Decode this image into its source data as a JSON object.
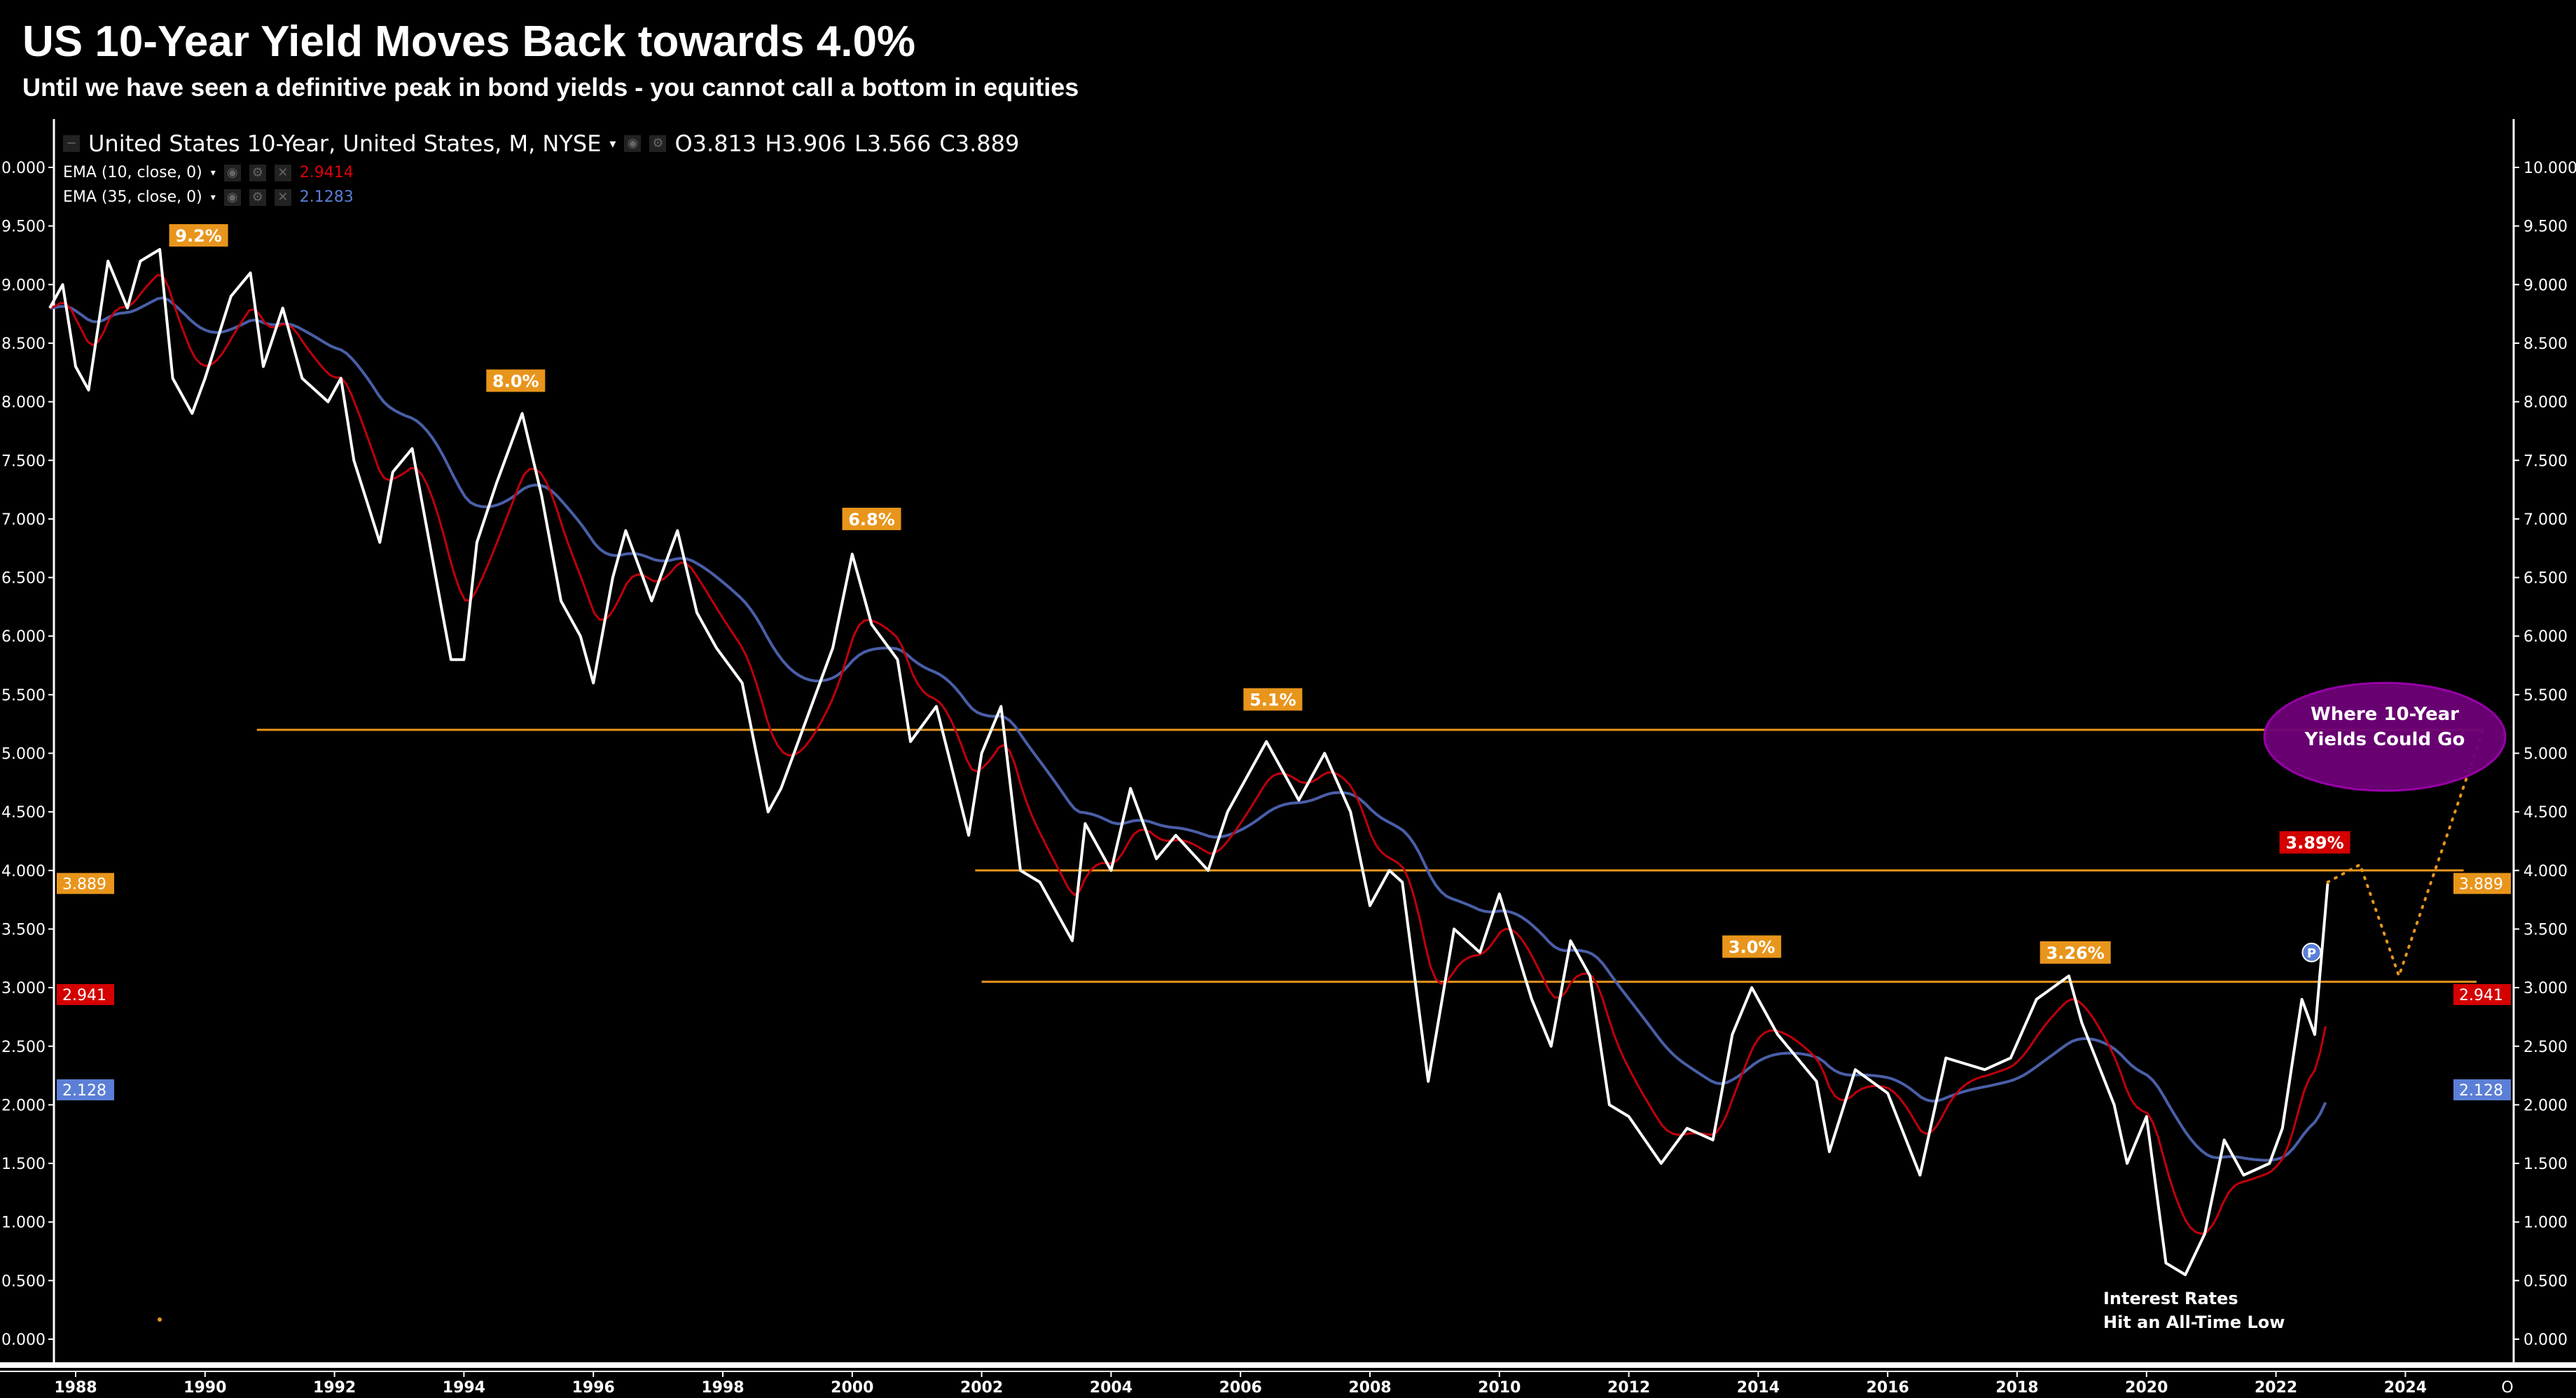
{
  "title": "US 10-Year Yield Moves Back towards 4.0%",
  "subtitle": "Until we have seen a definitive peak in bond yields - you cannot call a bottom in equities",
  "legend": {
    "symbol": "United States 10-Year, United States, M, NYSE",
    "open": "O3.813",
    "high": "H3.906",
    "low": "L3.566",
    "close": "C3.889",
    "ema10_label": "EMA (10, close, 0)",
    "ema10_value": "2.9414",
    "ema35_label": "EMA (35, close, 0)",
    "ema35_value": "2.1283"
  },
  "colors": {
    "close": "#ffffff",
    "ema10": "#c0000b",
    "ema35": "#4a5fa8",
    "level": "#e8951c",
    "badge": "#e8951c",
    "current_badge": "#d40000",
    "bubble": "#6e0078"
  },
  "chart_data": {
    "type": "line",
    "xlim": [
      1987.4,
      2025.6
    ],
    "ylim": [
      -0.2,
      10.2
    ],
    "x_ticks": [
      "1988",
      "1990",
      "1992",
      "1994",
      "1996",
      "1998",
      "2000",
      "2002",
      "2004",
      "2006",
      "2008",
      "2010",
      "2012",
      "2014",
      "2016",
      "2018",
      "2020",
      "2022",
      "2024"
    ],
    "y_ticks": [
      "0.000",
      "0.500",
      "1.000",
      "1.500",
      "2.000",
      "2.500",
      "3.000",
      "3.500",
      "4.000",
      "4.500",
      "5.000",
      "5.500",
      "6.000",
      "6.500",
      "7.000",
      "7.500",
      "8.000",
      "8.500",
      "9.000",
      "9.500",
      "10.000"
    ],
    "grid": false,
    "series": [
      {
        "name": "United States 10-Year",
        "ema_periods": 0,
        "x": [
          1987.6,
          1987.8,
          1988.0,
          1988.2,
          1988.5,
          1988.8,
          1989.0,
          1989.3,
          1989.5,
          1989.8,
          1990.0,
          1990.4,
          1990.7,
          1990.9,
          1991.2,
          1991.5,
          1991.9,
          1992.1,
          1992.3,
          1992.7,
          1992.9,
          1993.2,
          1993.5,
          1993.8,
          1994.0,
          1994.2,
          1994.5,
          1994.9,
          1995.2,
          1995.5,
          1995.8,
          1996.0,
          1996.3,
          1996.5,
          1996.9,
          1997.3,
          1997.6,
          1997.9,
          1998.3,
          1998.7,
          1998.9,
          1999.3,
          1999.7,
          2000.0,
          2000.3,
          2000.7,
          2000.9,
          2001.3,
          2001.8,
          2002.0,
          2002.3,
          2002.6,
          2002.9,
          2003.4,
          2003.6,
          2004.0,
          2004.3,
          2004.7,
          2005.0,
          2005.5,
          2005.8,
          2006.2,
          2006.4,
          2006.9,
          2007.3,
          2007.7,
          2008.0,
          2008.3,
          2008.5,
          2008.9,
          2009.3,
          2009.7,
          2010.0,
          2010.5,
          2010.8,
          2011.1,
          2011.4,
          2011.7,
          2012.0,
          2012.5,
          2012.9,
          2013.3,
          2013.6,
          2013.9,
          2014.3,
          2014.9,
          2015.1,
          2015.5,
          2016.0,
          2016.5,
          2016.9,
          2017.5,
          2017.9,
          2018.3,
          2018.8,
          2019.0,
          2019.5,
          2019.7,
          2020.0,
          2020.3,
          2020.6,
          2020.9,
          2021.2,
          2021.5,
          2021.9,
          2022.1,
          2022.4,
          2022.6,
          2022.8
        ],
        "values": [
          8.8,
          9.0,
          8.3,
          8.1,
          9.2,
          8.8,
          9.2,
          9.3,
          8.2,
          7.9,
          8.2,
          8.9,
          9.1,
          8.3,
          8.8,
          8.2,
          8.0,
          8.2,
          7.5,
          6.8,
          7.4,
          7.6,
          6.7,
          5.8,
          5.8,
          6.8,
          7.3,
          7.9,
          7.2,
          6.3,
          6.0,
          5.6,
          6.5,
          6.9,
          6.3,
          6.9,
          6.2,
          5.9,
          5.6,
          4.5,
          4.7,
          5.3,
          5.9,
          6.7,
          6.1,
          5.8,
          5.1,
          5.4,
          4.3,
          5.0,
          5.4,
          4.0,
          3.9,
          3.4,
          4.4,
          4.0,
          4.7,
          4.1,
          4.3,
          4.0,
          4.5,
          4.9,
          5.1,
          4.6,
          5.0,
          4.5,
          3.7,
          4.0,
          3.9,
          2.2,
          3.5,
          3.3,
          3.8,
          2.9,
          2.5,
          3.4,
          3.1,
          2.0,
          1.9,
          1.5,
          1.8,
          1.7,
          2.6,
          3.0,
          2.6,
          2.2,
          1.6,
          2.3,
          2.1,
          1.4,
          2.4,
          2.3,
          2.4,
          2.9,
          3.1,
          2.7,
          2.0,
          1.5,
          1.9,
          0.65,
          0.55,
          0.9,
          1.7,
          1.4,
          1.5,
          1.8,
          2.9,
          2.6,
          3.889
        ]
      },
      {
        "name": "EMA (10, close, 0)",
        "ema_periods": 10,
        "last": 2.941
      },
      {
        "name": "EMA (35, close, 0)",
        "ema_periods": 35,
        "last": 2.128
      }
    ],
    "levels": [
      {
        "value": 5.2,
        "from": 1990.8,
        "to": 2025.2
      },
      {
        "value": 4.0,
        "from": 2001.9,
        "to": 2024.9
      },
      {
        "value": 3.05,
        "from": 2002.0,
        "to": 2025.1
      }
    ],
    "annotations": [
      {
        "text": "9.2%",
        "x": 1989.9,
        "y": 9.42,
        "style": "badge"
      },
      {
        "text": "8.0%",
        "x": 1994.8,
        "y": 8.18,
        "style": "badge"
      },
      {
        "text": "6.8%",
        "x": 2000.3,
        "y": 7.0,
        "style": "badge"
      },
      {
        "text": "5.1%",
        "x": 2006.5,
        "y": 5.46,
        "style": "badge"
      },
      {
        "text": "3.0%",
        "x": 2013.9,
        "y": 3.35,
        "style": "badge"
      },
      {
        "text": "3.26%",
        "x": 2018.9,
        "y": 3.3,
        "style": "badge"
      },
      {
        "text": "3.89%",
        "x": 2022.6,
        "y": 4.24,
        "style": "current"
      }
    ],
    "projection": {
      "x": [
        2022.8,
        2023.3,
        2023.9,
        2025.2
      ],
      "y": [
        3.9,
        4.05,
        3.1,
        5.2
      ]
    },
    "bubble_text": [
      "Where 10-Year",
      "Yields Could Go"
    ],
    "low_note": [
      "Interest Rates",
      "Hit an All-Time Low"
    ],
    "price_tags": [
      {
        "text": "3.889",
        "value": 3.889,
        "color": "#e8951c"
      },
      {
        "text": "2.941",
        "value": 2.941,
        "color": "#d40000"
      },
      {
        "text": "2.128",
        "value": 2.128,
        "color": "#5b7fd6"
      }
    ],
    "pivot_marker": "P"
  }
}
